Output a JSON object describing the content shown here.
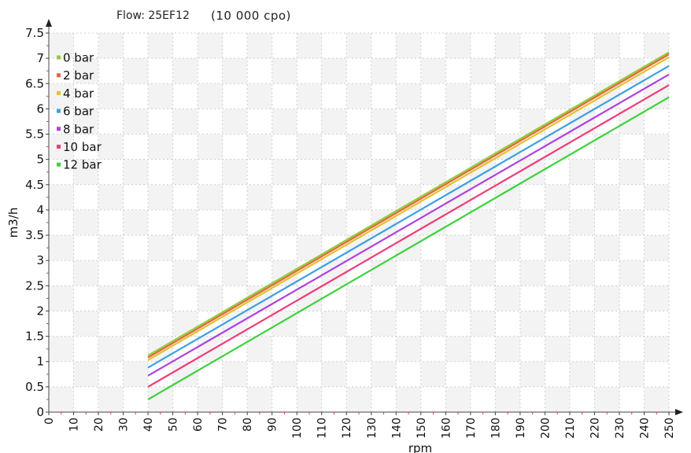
{
  "chart_data": {
    "type": "line",
    "title": "Flow: 25EF12",
    "subtitle": "(10 000 cpo)",
    "xlabel": "rpm",
    "ylabel": "m3/h",
    "xlim": [
      0,
      250
    ],
    "ylim": [
      0,
      7.5
    ],
    "x_ticks": [
      "0",
      "10",
      "20",
      "30",
      "40",
      "50",
      "60",
      "70",
      "80",
      "90",
      "100",
      "110",
      "120",
      "130",
      "140",
      "150",
      "160",
      "170",
      "180",
      "190",
      "200",
      "210",
      "220",
      "230",
      "240",
      "250"
    ],
    "y_ticks": [
      "0",
      "0.5",
      "1",
      "1.5",
      "2",
      "2.5",
      "3",
      "3.5",
      "4",
      "4.5",
      "5",
      "5.5",
      "6",
      "6.5",
      "7",
      "7.5"
    ],
    "grid": true,
    "legend_position": "top-left",
    "series": [
      {
        "name": "0 bar",
        "color": "#8fcf3c",
        "x": [
          40,
          250
        ],
        "y": [
          1.12,
          7.12
        ]
      },
      {
        "name": "2 bar",
        "color": "#e8643c",
        "x": [
          40,
          250
        ],
        "y": [
          1.08,
          7.08
        ]
      },
      {
        "name": "4 bar",
        "color": "#e6c030",
        "x": [
          40,
          250
        ],
        "y": [
          1.03,
          7.02
        ]
      },
      {
        "name": "6 bar",
        "color": "#3ca0e0",
        "x": [
          40,
          250
        ],
        "y": [
          0.88,
          6.85
        ]
      },
      {
        "name": "8 bar",
        "color": "#b040e0",
        "x": [
          40,
          250
        ],
        "y": [
          0.72,
          6.68
        ]
      },
      {
        "name": "10 bar",
        "color": "#f03c78",
        "x": [
          40,
          250
        ],
        "y": [
          0.5,
          6.47
        ]
      },
      {
        "name": "12 bar",
        "color": "#3cd23c",
        "x": [
          40,
          250
        ],
        "y": [
          0.25,
          6.23
        ]
      }
    ]
  }
}
